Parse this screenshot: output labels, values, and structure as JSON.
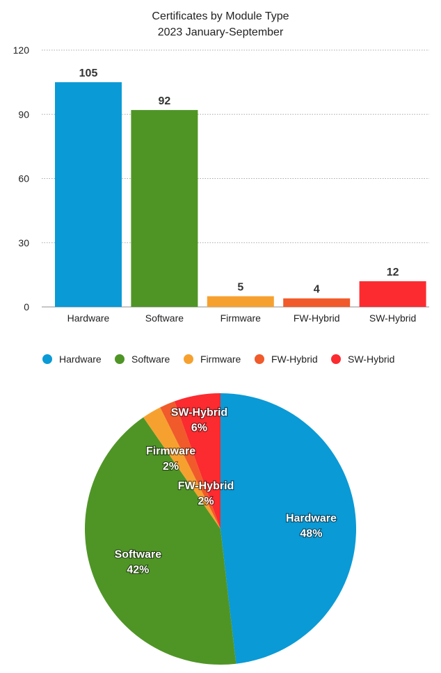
{
  "chart_data": [
    {
      "type": "bar",
      "title": "Certificates by Module Type",
      "subtitle": "2023 January-September",
      "categories": [
        "Hardware",
        "Software",
        "Firmware",
        "FW-Hybrid",
        "SW-Hybrid"
      ],
      "values": [
        105,
        92,
        5,
        4,
        12
      ],
      "colors": [
        "#0a9ad6",
        "#4f9526",
        "#f6a12f",
        "#f15a2a",
        "#fb2b30"
      ],
      "ylim": [
        0,
        120
      ],
      "yticks": [
        0,
        30,
        60,
        90,
        120
      ],
      "grid": true,
      "legend": "bottom",
      "legend_entries": [
        "Hardware",
        "Software",
        "Firmware",
        "FW-Hybrid",
        "SW-Hybrid"
      ]
    },
    {
      "type": "pie",
      "categories": [
        "Hardware",
        "Software",
        "Firmware",
        "FW-Hybrid",
        "SW-Hybrid"
      ],
      "values": [
        105,
        92,
        5,
        4,
        12
      ],
      "percent_labels": [
        "48%",
        "42%",
        "2%",
        "2%",
        "6%"
      ],
      "colors": [
        "#0a9ad6",
        "#4f9526",
        "#f6a12f",
        "#f15a2a",
        "#fb2b30"
      ]
    }
  ]
}
